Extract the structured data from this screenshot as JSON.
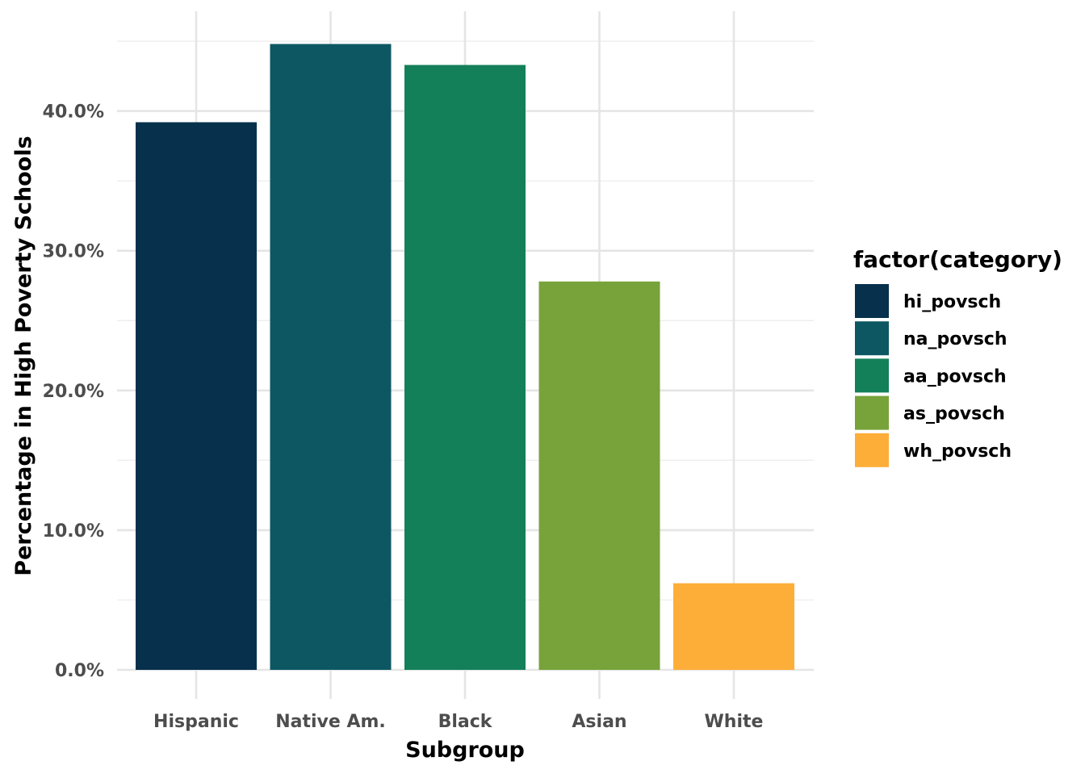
{
  "chart_data": {
    "type": "bar",
    "title": "",
    "xlabel": "Subgroup",
    "ylabel": "Percentage in High Poverty Schools",
    "categories": [
      "Hispanic",
      "Native Am.",
      "Black",
      "Asian",
      "White"
    ],
    "values": [
      39.2,
      44.8,
      43.3,
      27.8,
      6.2
    ],
    "series_keys": [
      "hi_povsch",
      "na_povsch",
      "aa_povsch",
      "as_povsch",
      "wh_povsch"
    ],
    "colors": [
      "#06304b",
      "#0d5763",
      "#13805a",
      "#77a33a",
      "#fdae38"
    ],
    "ylim": [
      0,
      47
    ],
    "y_ticks": [
      0,
      10,
      20,
      30,
      40
    ],
    "y_tick_labels": [
      "0.0%",
      "10.0%",
      "20.0%",
      "30.0%",
      "40.0%"
    ],
    "grid": true,
    "legend": {
      "title": "factor(category)",
      "position": "right",
      "items": [
        "hi_povsch",
        "na_povsch",
        "aa_povsch",
        "as_povsch",
        "wh_povsch"
      ]
    }
  }
}
